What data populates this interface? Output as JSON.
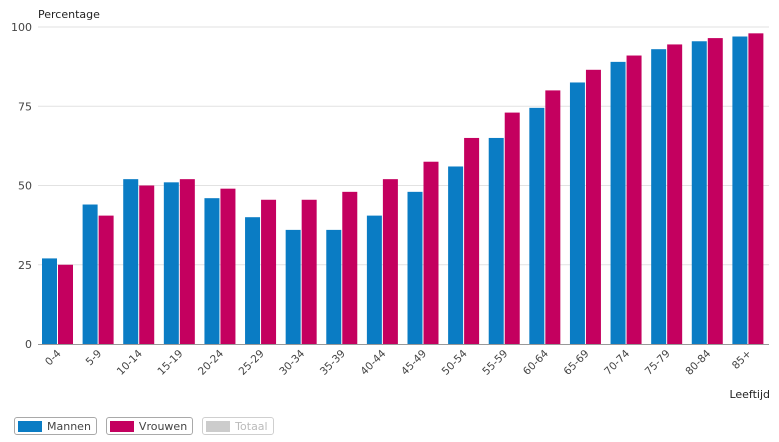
{
  "chart_data": {
    "type": "bar",
    "ylabel": "Percentage",
    "xlabel": "Leeftijd",
    "ylim": [
      0,
      100
    ],
    "yticks": [
      0,
      25,
      50,
      75,
      100
    ],
    "grid": true,
    "legend_position": "bottom-left",
    "categories": [
      "0-4",
      "5-9",
      "10-14",
      "15-19",
      "20-24",
      "25-29",
      "30-34",
      "35-39",
      "40-44",
      "45-49",
      "50-54",
      "55-59",
      "60-64",
      "65-69",
      "70-74",
      "75-79",
      "80-84",
      "85+"
    ],
    "series": [
      {
        "name": "Mannen",
        "color": "#0a7cc4",
        "values": [
          27,
          44,
          52,
          51,
          46,
          40,
          36,
          36,
          40.5,
          48,
          56,
          65,
          74.5,
          82.5,
          89,
          93,
          95.5,
          97
        ]
      },
      {
        "name": "Vrouwen",
        "color": "#c4005f",
        "values": [
          25,
          40.5,
          50,
          52,
          49,
          45.5,
          45.5,
          48,
          52,
          57.5,
          65,
          73,
          80,
          86.5,
          91,
          94.5,
          96.5,
          98
        ]
      }
    ]
  },
  "legend": [
    {
      "label": "Mannen",
      "color": "#0a7cc4",
      "active": true
    },
    {
      "label": "Vrouwen",
      "color": "#c4005f",
      "active": true
    },
    {
      "label": "Totaal",
      "color": "#cccccc",
      "active": false
    }
  ]
}
